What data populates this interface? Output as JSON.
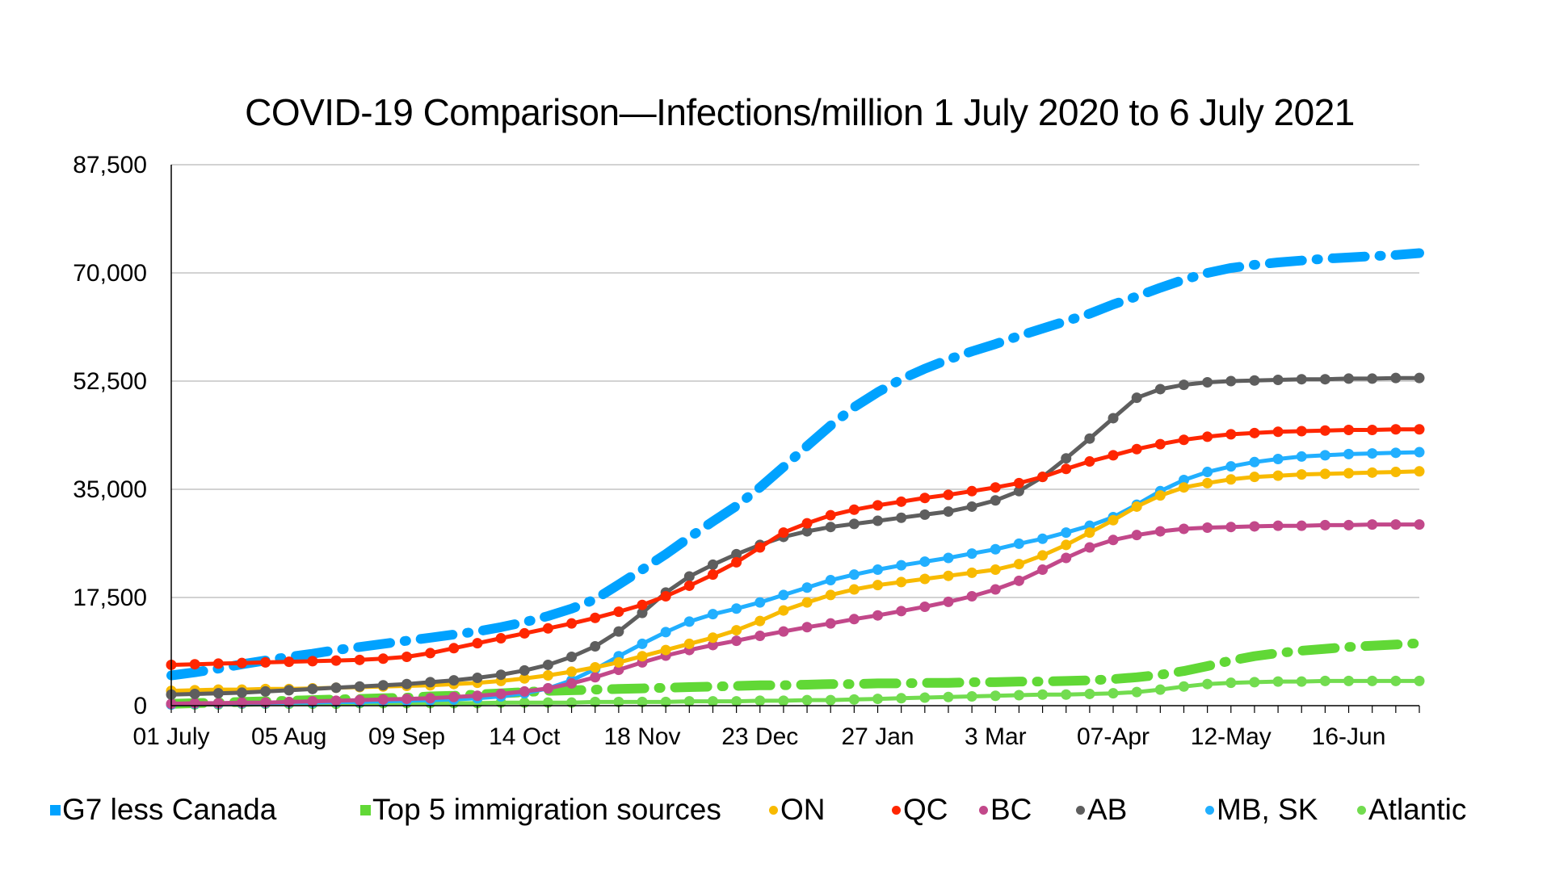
{
  "chart_data": {
    "type": "line",
    "title": "COVID-19 Comparison—Infections/million 1 July 2020 to 6 July 2021",
    "xlabel": "",
    "ylabel": "",
    "ylim": [
      0,
      87500
    ],
    "yticks": [
      0,
      17500,
      35000,
      52500,
      70000,
      87500
    ],
    "ytick_labels": [
      "0",
      "17,500",
      "35,000",
      "52,500",
      "70,000",
      "87,500"
    ],
    "grid": "horizontal",
    "legend_position": "bottom",
    "x_points": 54,
    "x_interval": "weekly",
    "xtick_labels": [
      {
        "index": 0,
        "label": "01 July"
      },
      {
        "index": 5,
        "label": "05 Aug"
      },
      {
        "index": 10,
        "label": "09 Sep"
      },
      {
        "index": 15,
        "label": "14 Oct"
      },
      {
        "index": 20,
        "label": "18 Nov"
      },
      {
        "index": 25,
        "label": "23 Dec"
      },
      {
        "index": 30,
        "label": "27 Jan"
      },
      {
        "index": 35,
        "label": "3 Mar"
      },
      {
        "index": 40,
        "label": "07-Apr"
      },
      {
        "index": 45,
        "label": "12-May"
      },
      {
        "index": 50,
        "label": "16-Jun"
      }
    ],
    "series": [
      {
        "name": "G7 less Canada",
        "color": "#00A2FF",
        "style": "dash-dot",
        "marker": "square",
        "values": [
          4900,
          5400,
          6000,
          6700,
          7300,
          7900,
          8400,
          9000,
          9500,
          10000,
          10500,
          11000,
          11500,
          12000,
          12700,
          13500,
          14500,
          15700,
          17200,
          19600,
          22000,
          24500,
          27200,
          29800,
          32300,
          35300,
          38600,
          42000,
          45300,
          48300,
          50700,
          52800,
          54500,
          56000,
          57300,
          58500,
          59800,
          61000,
          62200,
          63400,
          64900,
          66200,
          67600,
          68900,
          70000,
          70800,
          71300,
          71700,
          72000,
          72300,
          72500,
          72700,
          72900,
          73200
        ]
      },
      {
        "name": "Top 5 immigration sources",
        "color": "#61D836",
        "style": "dash-dot",
        "marker": "square",
        "values": [
          300,
          400,
          500,
          600,
          700,
          800,
          900,
          1000,
          1100,
          1200,
          1300,
          1500,
          1600,
          1800,
          2000,
          2200,
          2400,
          2500,
          2600,
          2700,
          2800,
          2900,
          3000,
          3100,
          3200,
          3300,
          3300,
          3400,
          3500,
          3500,
          3600,
          3600,
          3700,
          3700,
          3800,
          3800,
          3900,
          3900,
          4000,
          4100,
          4300,
          4600,
          5000,
          5600,
          6400,
          7300,
          8000,
          8500,
          8900,
          9200,
          9500,
          9700,
          9900,
          10100
        ]
      },
      {
        "name": "ON",
        "color": "#F8BA00",
        "style": "solid",
        "marker": "circle",
        "values": [
          2400,
          2500,
          2600,
          2600,
          2700,
          2700,
          2800,
          2900,
          3000,
          3100,
          3200,
          3300,
          3500,
          3700,
          4000,
          4400,
          4900,
          5500,
          6200,
          7000,
          8000,
          9000,
          10000,
          11000,
          12200,
          13700,
          15400,
          16700,
          17900,
          18800,
          19500,
          20000,
          20500,
          21000,
          21500,
          22000,
          22900,
          24300,
          26000,
          28000,
          30000,
          32200,
          34000,
          35300,
          36000,
          36600,
          37000,
          37200,
          37400,
          37500,
          37600,
          37700,
          37800,
          37900
        ]
      },
      {
        "name": "QC",
        "color": "#FF2600",
        "style": "solid",
        "marker": "circle",
        "values": [
          6600,
          6700,
          6800,
          6900,
          7000,
          7100,
          7200,
          7300,
          7400,
          7600,
          7900,
          8500,
          9300,
          10100,
          10900,
          11700,
          12500,
          13300,
          14200,
          15200,
          16300,
          17700,
          19400,
          21200,
          23200,
          25600,
          28000,
          29500,
          30800,
          31700,
          32400,
          33000,
          33600,
          34100,
          34700,
          35300,
          36000,
          37000,
          38300,
          39500,
          40500,
          41500,
          42300,
          43000,
          43500,
          43900,
          44100,
          44300,
          44400,
          44500,
          44600,
          44600,
          44700,
          44700
        ]
      },
      {
        "name": "BC",
        "color": "#C2488A",
        "style": "solid",
        "marker": "circle",
        "values": [
          300,
          400,
          400,
          500,
          500,
          600,
          700,
          800,
          900,
          1000,
          1100,
          1200,
          1400,
          1600,
          1900,
          2300,
          2800,
          3600,
          4600,
          5800,
          7000,
          8100,
          9000,
          9800,
          10500,
          11300,
          12000,
          12700,
          13300,
          14000,
          14600,
          15300,
          16000,
          16800,
          17700,
          18800,
          20200,
          22000,
          23900,
          25600,
          26800,
          27600,
          28200,
          28600,
          28800,
          28900,
          29000,
          29100,
          29100,
          29200,
          29200,
          29300,
          29300,
          29300
        ]
      },
      {
        "name": "AB",
        "color": "#5E5E5E",
        "style": "solid",
        "marker": "circle",
        "values": [
          1800,
          1900,
          2000,
          2100,
          2300,
          2500,
          2700,
          2900,
          3100,
          3300,
          3500,
          3800,
          4100,
          4500,
          5000,
          5700,
          6600,
          7900,
          9600,
          12000,
          15000,
          18300,
          20900,
          22800,
          24500,
          26000,
          27300,
          28200,
          28900,
          29400,
          29900,
          30400,
          30900,
          31400,
          32200,
          33200,
          34700,
          37000,
          40000,
          43200,
          46500,
          49800,
          51200,
          51900,
          52300,
          52500,
          52600,
          52700,
          52800,
          52800,
          52900,
          52900,
          53000,
          53000
        ]
      },
      {
        "name": "MB, SK",
        "color": "#21AFFF",
        "style": "solid",
        "marker": "circle",
        "values": [
          200,
          300,
          300,
          400,
          400,
          500,
          500,
          600,
          600,
          700,
          800,
          900,
          1000,
          1200,
          1500,
          2000,
          2800,
          4100,
          5900,
          8000,
          10000,
          11900,
          13600,
          14800,
          15700,
          16700,
          17900,
          19100,
          20300,
          21200,
          22000,
          22700,
          23300,
          23900,
          24600,
          25300,
          26200,
          27000,
          28000,
          29100,
          30500,
          32500,
          34700,
          36500,
          37800,
          38700,
          39400,
          39900,
          40300,
          40500,
          40700,
          40800,
          40900,
          41000
        ]
      },
      {
        "name": "Atlantic",
        "color": "#72DC4F",
        "style": "solid",
        "marker": "circle",
        "values": [
          200,
          200,
          200,
          300,
          300,
          300,
          300,
          300,
          400,
          400,
          400,
          400,
          400,
          400,
          500,
          500,
          500,
          500,
          600,
          600,
          600,
          600,
          700,
          700,
          700,
          800,
          800,
          900,
          900,
          1000,
          1100,
          1200,
          1300,
          1400,
          1500,
          1600,
          1700,
          1800,
          1800,
          1900,
          2000,
          2200,
          2600,
          3100,
          3500,
          3700,
          3800,
          3900,
          3900,
          4000,
          4000,
          4000,
          4000,
          4000
        ]
      }
    ]
  }
}
